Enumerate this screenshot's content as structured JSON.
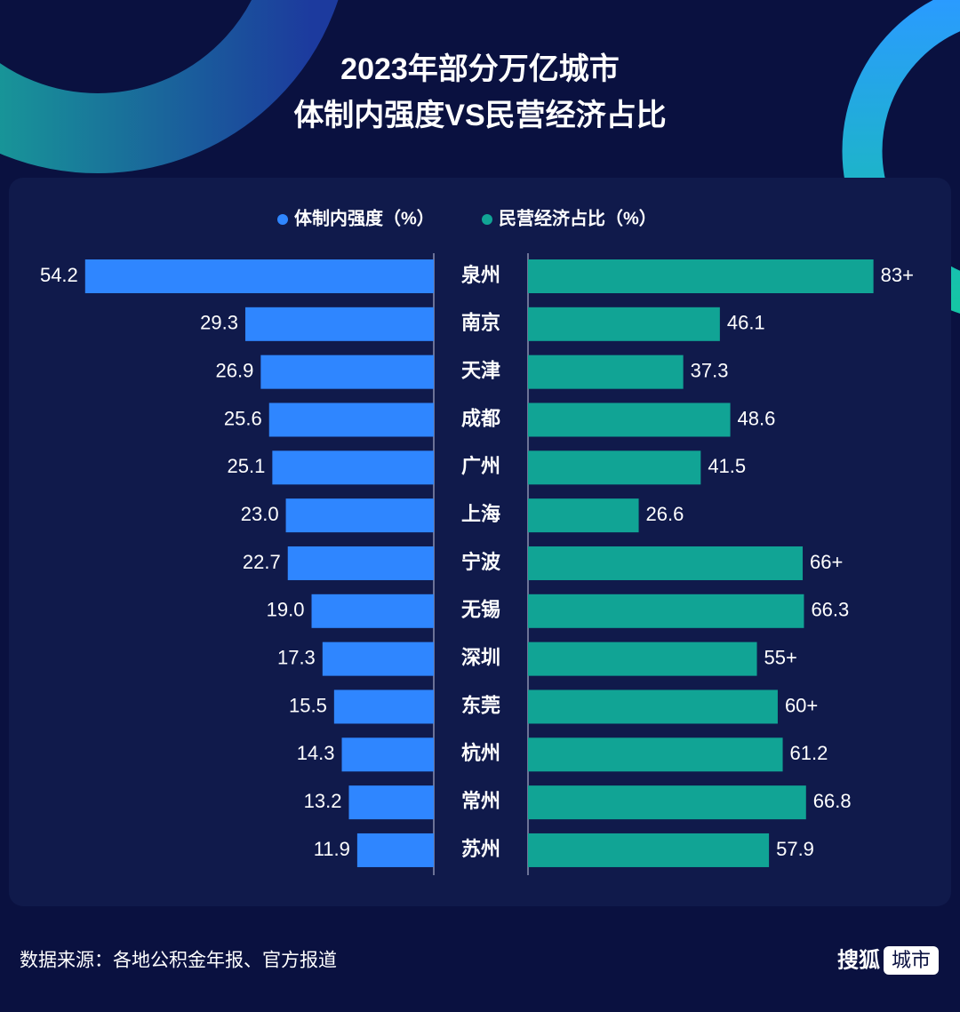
{
  "chart_data": {
    "type": "bar",
    "title": "2023年部分万亿城市",
    "subtitle": "体制内强度VS民营经济占比",
    "categories": [
      "泉州",
      "南京",
      "天津",
      "成都",
      "广州",
      "上海",
      "宁波",
      "无锡",
      "深圳",
      "东莞",
      "杭州",
      "常州",
      "苏州"
    ],
    "series": [
      {
        "name": "体制内强度（%）",
        "color": "#2f86ff",
        "xlim": [
          0,
          55
        ],
        "values": [
          54.2,
          29.3,
          26.9,
          25.6,
          25.1,
          23.0,
          22.7,
          19.0,
          17.3,
          15.5,
          14.3,
          13.2,
          11.9
        ],
        "value_labels": [
          "54.2",
          "29.3",
          "26.9",
          "25.6",
          "25.1",
          "23.0",
          "22.7",
          "19.0",
          "17.3",
          "15.5",
          "14.3",
          "13.2",
          "11.9"
        ]
      },
      {
        "name": "民营经济占比（%）",
        "color": "#11a495",
        "xlim": [
          0,
          85
        ],
        "values": [
          83,
          46.1,
          37.3,
          48.6,
          41.5,
          26.6,
          66,
          66.3,
          55,
          60,
          61.2,
          66.8,
          57.9
        ],
        "value_labels": [
          "83+",
          "46.1",
          "37.3",
          "48.6",
          "41.5",
          "26.6",
          "66+",
          "66.3",
          "55+",
          "60+",
          "61.2",
          "66.8",
          "57.9"
        ]
      }
    ]
  },
  "footer": {
    "source": "数据来源：各地公积金年报、官方报道",
    "brand": "搜狐",
    "brand_tag": "城市"
  }
}
